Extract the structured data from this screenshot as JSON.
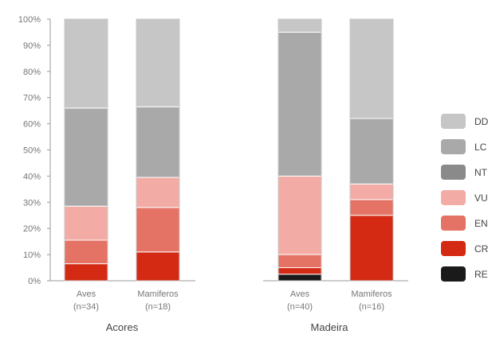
{
  "chart_data": {
    "type": "bar",
    "stacked": true,
    "y_ticks": [
      "0%",
      "10%",
      "20%",
      "30%",
      "40%",
      "50%",
      "60%",
      "70%",
      "80%",
      "90%",
      "100%"
    ],
    "ylim": [
      0,
      100
    ],
    "categories": [
      {
        "name": "Aves",
        "n": "(n=34)",
        "group": "Acores"
      },
      {
        "name": "Mamiferos",
        "n": "(n=18)",
        "group": "Acores"
      },
      {
        "name": "Aves",
        "n": "(n=40)",
        "group": "Madeira"
      },
      {
        "name": "Mamiferos",
        "n": "(n=16)",
        "group": "Madeira"
      }
    ],
    "groups": [
      "Acores",
      "Madeira"
    ],
    "series": [
      {
        "name": "RE",
        "color": "#1a1a1a",
        "values": [
          0,
          0,
          2.5,
          0
        ]
      },
      {
        "name": "CR",
        "color": "#d42a14",
        "values": [
          6.5,
          11,
          2.5,
          25
        ]
      },
      {
        "name": "EN",
        "color": "#e47265",
        "values": [
          9,
          17,
          5,
          6
        ]
      },
      {
        "name": "VU",
        "color": "#f2aca5",
        "values": [
          13,
          11.5,
          30,
          6
        ]
      },
      {
        "name": "NT",
        "color": "#8a8a8a",
        "values": [
          0,
          0,
          0,
          0
        ]
      },
      {
        "name": "LC",
        "color": "#a9a9a9",
        "values": [
          37.5,
          27,
          55,
          25
        ]
      },
      {
        "name": "DD",
        "color": "#c6c6c6",
        "values": [
          34,
          33.5,
          5,
          38
        ]
      }
    ],
    "legend_order": [
      "DD",
      "LC",
      "NT",
      "VU",
      "EN",
      "CR",
      "RE"
    ],
    "legend_labels": {
      "DD": "DD",
      "LC": "LC",
      "NT": "NT",
      "VU": "VU",
      "EN": "EN",
      "CR": "CR",
      "RE": "RE"
    },
    "legend_placement": "right",
    "grid": false
  }
}
